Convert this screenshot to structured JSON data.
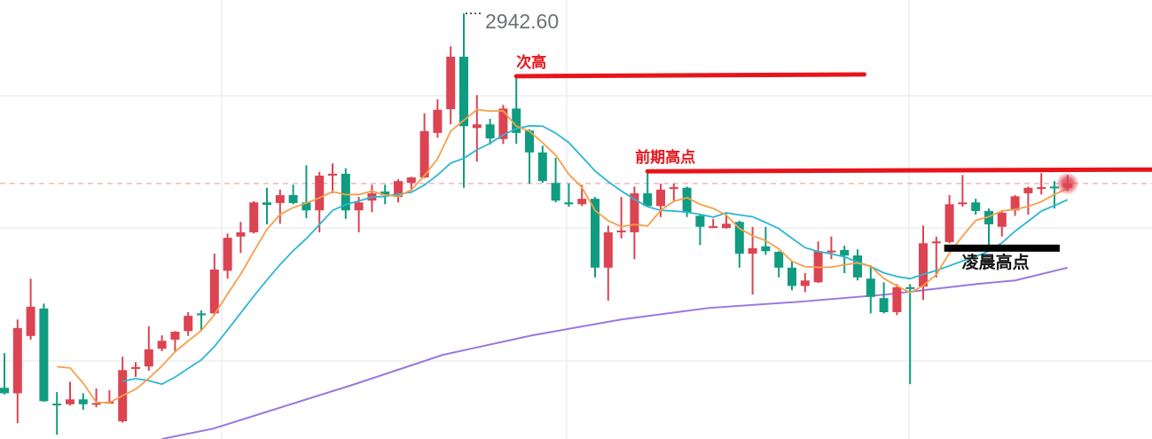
{
  "chart_data": {
    "type": "candlestick",
    "title": "",
    "xlabel": "",
    "ylabel": "",
    "ylim": [
      2872.8,
      2944.8
    ],
    "grid": true,
    "colors": {
      "up": "#dc4452",
      "down": "#109c80",
      "ma_short": "#f5a04a",
      "ma_mid": "#2bb7d3",
      "ma_long": "#9a78de",
      "annotation": "#e8141a",
      "annotation_dark": "#000000",
      "last_price_line": "#e8a0a0",
      "max_label": "#6d7079"
    },
    "candle_fields": [
      "open",
      "high",
      "low",
      "close"
    ],
    "candles": [
      [
        2881.2,
        2886.9,
        2880.1,
        2880.3
      ],
      [
        2880.3,
        2892.4,
        2875.4,
        2891.0
      ],
      [
        2889.7,
        2899.1,
        2889.1,
        2894.5
      ],
      [
        2894.2,
        2895.0,
        2878.9,
        2879.0
      ],
      [
        2878.6,
        2880.5,
        2873.5,
        2878.5
      ],
      [
        2878.5,
        2882.2,
        2878.3,
        2879.3
      ],
      [
        2879.3,
        2880.3,
        2877.6,
        2878.5
      ],
      [
        2878.5,
        2881.1,
        2878.0,
        2878.7
      ],
      [
        2878.7,
        2880.8,
        2878.6,
        2878.9
      ],
      [
        2875.7,
        2886.3,
        2875.5,
        2884.1
      ],
      [
        2884.3,
        2885.4,
        2883.0,
        2884.6
      ],
      [
        2884.7,
        2891.3,
        2884.0,
        2887.5
      ],
      [
        2887.6,
        2889.8,
        2887.2,
        2888.9
      ],
      [
        2889.1,
        2890.5,
        2887.0,
        2890.4
      ],
      [
        2890.5,
        2893.6,
        2889.7,
        2893.0
      ],
      [
        2893.4,
        2893.9,
        2890.7,
        2893.1
      ],
      [
        2893.4,
        2903.2,
        2893.1,
        2900.6
      ],
      [
        2900.4,
        2906.5,
        2899.1,
        2905.8
      ],
      [
        2906.0,
        2908.4,
        2903.3,
        2906.7
      ],
      [
        2906.7,
        2911.8,
        2906.5,
        2911.6
      ],
      [
        2911.6,
        2914.0,
        2908.0,
        2911.2
      ],
      [
        2911.5,
        2913.7,
        2908.1,
        2912.8
      ],
      [
        2912.8,
        2914.5,
        2911.3,
        2911.5
      ],
      [
        2911.6,
        2917.7,
        2909.0,
        2910.3
      ],
      [
        2910.3,
        2916.6,
        2906.7,
        2916.0
      ],
      [
        2916.0,
        2918.0,
        2913.1,
        2916.3
      ],
      [
        2916.3,
        2917.2,
        2908.9,
        2910.3
      ],
      [
        2910.3,
        2912.5,
        2906.7,
        2911.6
      ],
      [
        2911.9,
        2914.5,
        2910.0,
        2913.1
      ],
      [
        2913.4,
        2914.5,
        2911.3,
        2912.8
      ],
      [
        2912.5,
        2915.4,
        2911.6,
        2915.1
      ],
      [
        2914.8,
        2915.8,
        2913.5,
        2915.7
      ],
      [
        2915.7,
        2926.2,
        2915.6,
        2923.3
      ],
      [
        2923.0,
        2928.5,
        2922.2,
        2926.8
      ],
      [
        2926.9,
        2937.2,
        2924.4,
        2935.5
      ],
      [
        2935.5,
        2942.6,
        2914.0,
        2924.1
      ],
      [
        2923.8,
        2929.2,
        2918.3,
        2924.4
      ],
      [
        2924.4,
        2925.3,
        2921.1,
        2922.1
      ],
      [
        2922.0,
        2927.6,
        2921.2,
        2927.0
      ],
      [
        2927.0,
        2932.3,
        2921.2,
        2923.0
      ],
      [
        2923.4,
        2923.6,
        2914.7,
        2919.8
      ],
      [
        2919.8,
        2920.9,
        2914.8,
        2915.1
      ],
      [
        2914.8,
        2918.9,
        2911.6,
        2911.9
      ],
      [
        2911.6,
        2914.7,
        2910.9,
        2911.3
      ],
      [
        2911.3,
        2914.5,
        2911.0,
        2912.2
      ],
      [
        2912.2,
        2912.5,
        2899.3,
        2900.9
      ],
      [
        2900.9,
        2907.8,
        2895.5,
        2906.7
      ],
      [
        2906.7,
        2912.5,
        2905.7,
        2907.0
      ],
      [
        2906.7,
        2914.2,
        2902.3,
        2913.1
      ],
      [
        2913.1,
        2916.4,
        2910.9,
        2911.0
      ],
      [
        2911.0,
        2914.7,
        2909.2,
        2913.7
      ],
      [
        2913.8,
        2914.7,
        2911.9,
        2914.1
      ],
      [
        2914.0,
        2914.2,
        2909.2,
        2910.0
      ],
      [
        2909.4,
        2909.6,
        2904.6,
        2907.6
      ],
      [
        2907.5,
        2908.9,
        2907.4,
        2907.7
      ],
      [
        2907.4,
        2909.7,
        2907.3,
        2908.1
      ],
      [
        2908.4,
        2908.6,
        2900.9,
        2903.2
      ],
      [
        2903.2,
        2907.6,
        2896.5,
        2904.1
      ],
      [
        2904.4,
        2907.6,
        2903.0,
        2903.6
      ],
      [
        2903.5,
        2903.6,
        2899.3,
        2900.9
      ],
      [
        2900.9,
        2901.9,
        2897.2,
        2897.9
      ],
      [
        2897.9,
        2900.0,
        2896.9,
        2898.8
      ],
      [
        2898.5,
        2905.2,
        2898.4,
        2903.6
      ],
      [
        2903.4,
        2906.0,
        2902.3,
        2903.7
      ],
      [
        2903.8,
        2904.5,
        2900.0,
        2902.9
      ],
      [
        2902.9,
        2903.9,
        2898.8,
        2899.3
      ],
      [
        2899.1,
        2901.3,
        2893.4,
        2896.1
      ],
      [
        2895.9,
        2898.5,
        2893.4,
        2893.6
      ],
      [
        2893.6,
        2898.2,
        2893.1,
        2897.7
      ],
      [
        2897.7,
        2898.2,
        2881.8,
        2897.4
      ],
      [
        2897.8,
        2907.8,
        2895.6,
        2904.9
      ],
      [
        2904.9,
        2906.0,
        2899.3,
        2905.2
      ],
      [
        2905.1,
        2912.8,
        2904.9,
        2911.3
      ],
      [
        2911.3,
        2916.1,
        2910.9,
        2911.6
      ],
      [
        2911.6,
        2912.2,
        2909.6,
        2910.2
      ],
      [
        2910.2,
        2910.6,
        2904.5,
        2908.0
      ],
      [
        2907.6,
        2910.3,
        2906.0,
        2909.9
      ],
      [
        2910.3,
        2912.8,
        2909.4,
        2912.6
      ],
      [
        2913.1,
        2914.2,
        2909.6,
        2914.0
      ],
      [
        2913.8,
        2916.4,
        2912.9,
        2914.1
      ],
      [
        2914.2,
        2915.1,
        2910.6,
        2914.0
      ],
      [
        2914.0,
        2916.1,
        2913.5,
        2914.7
      ]
    ],
    "moving_averages": {
      "short_period": 5,
      "mid_period": 10
    },
    "ma_long_points": [
      {
        "candle": 12,
        "value": 2872.8
      },
      {
        "candle": 15.9,
        "value": 2874.5
      },
      {
        "candle": 26.7,
        "value": 2881.8
      },
      {
        "candle": 33.4,
        "value": 2886.6
      },
      {
        "candle": 40.2,
        "value": 2889.8
      },
      {
        "candle": 47,
        "value": 2892.4
      },
      {
        "candle": 53.7,
        "value": 2894.3
      },
      {
        "candle": 60.5,
        "value": 2895.3
      },
      {
        "candle": 67.2,
        "value": 2896.5
      },
      {
        "candle": 74,
        "value": 2898.2
      },
      {
        "candle": 77,
        "value": 2898.8
      },
      {
        "candle": 81,
        "value": 2900.9
      }
    ],
    "last_price": 2914.7,
    "max_label": {
      "text": "2942.60",
      "candle": 35,
      "value": 2942.6
    },
    "annotations": [
      {
        "text": "次高",
        "value": 2932.3,
        "from_candle": 39,
        "to_candle": 65.5,
        "style": "red"
      },
      {
        "text": "前期高点",
        "value": 2916.7,
        "from_candle": 49,
        "to_candle": 87.5,
        "style": "red"
      },
      {
        "text": "凌晨高点",
        "value": 2904.1,
        "from_candle": 71.6,
        "to_candle": 80.4,
        "style": "black"
      }
    ]
  }
}
